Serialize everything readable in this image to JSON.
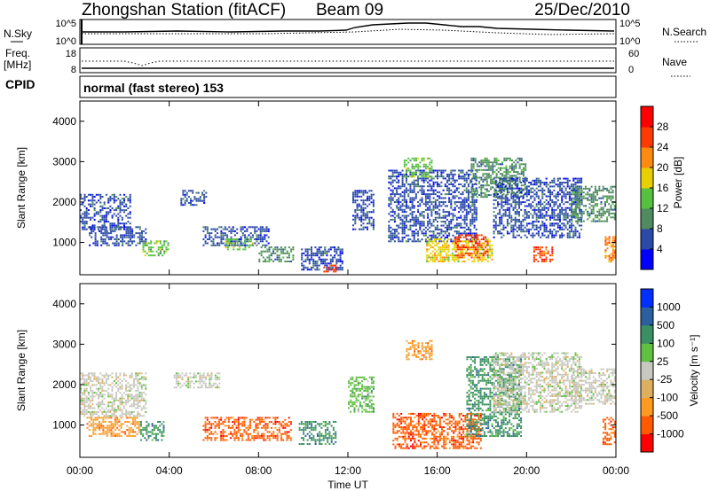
{
  "header": {
    "station": "Zhongshan Station (fitACF)",
    "beam": "Beam 09",
    "date": "25/Dec/2010"
  },
  "top_panels": {
    "nsky_label": "N.Sky",
    "nsky_top_tick": "10^5",
    "nsky_bottom_tick": "10^0",
    "nsearch_label": "N.Search",
    "nsearch_top_tick": "10^5",
    "nsearch_bottom_tick": "10^0",
    "freq_label_line1": "Freq.",
    "freq_label_line2": "[MHz]",
    "freq_top_tick": "18",
    "freq_bottom_tick": "8",
    "nave_label": "Nave",
    "nave_top_tick": "60",
    "nave_bottom_tick": "0",
    "cpid_label": "CPID",
    "mode": "normal (fast stereo) 153"
  },
  "colors": {
    "power_scale": [
      "#0000ff",
      "#2a4aa8",
      "#4f8a60",
      "#56c040",
      "#e8d000",
      "#ff8a10",
      "#ff3a00",
      "#ff0000"
    ],
    "velocity_scale": [
      "#ff0000",
      "#ff5a00",
      "#ff9a20",
      "#ddb060",
      "#c8c8c0",
      "#60c040",
      "#3a9060",
      "#2a60a0",
      "#0030ff"
    ]
  },
  "chart_data": [
    {
      "type": "heatmap",
      "name": "power_panel",
      "ylabel": "Slant Range [km]",
      "ylim": [
        200,
        4500
      ],
      "y_ticks": [
        "4000",
        "3000",
        "2000",
        "1000"
      ],
      "y_tick_values": [
        4000,
        3000,
        2000,
        1000
      ],
      "x_ticks": [
        "00:00",
        "04:00",
        "08:00",
        "12:00",
        "16:00",
        "20:00",
        "00:00"
      ],
      "x_tick_hours": [
        0,
        4,
        8,
        12,
        16,
        20,
        24
      ],
      "colorbar_label": "Power [dB]",
      "colorbar_ticks": [
        "28",
        "24",
        "20",
        "16",
        "12",
        "8",
        "4"
      ],
      "colorbar_values": [
        28,
        24,
        20,
        16,
        12,
        8,
        4
      ],
      "colorbar_range": [
        0,
        32
      ],
      "patches": [
        {
          "t0": 0.0,
          "t1": 2.3,
          "r0": 1300,
          "r1": 2200,
          "level": 1
        },
        {
          "t0": 0.4,
          "t1": 3.0,
          "r0": 900,
          "r1": 1400,
          "level": 1
        },
        {
          "t0": 2.8,
          "t1": 4.0,
          "r0": 650,
          "r1": 1050,
          "level": 3
        },
        {
          "t0": 4.5,
          "t1": 5.7,
          "r0": 1900,
          "r1": 2300,
          "level": 1
        },
        {
          "t0": 5.5,
          "t1": 8.5,
          "r0": 900,
          "r1": 1400,
          "level": 1
        },
        {
          "t0": 6.5,
          "t1": 7.8,
          "r0": 800,
          "r1": 1100,
          "level": 3
        },
        {
          "t0": 8.0,
          "t1": 9.6,
          "r0": 500,
          "r1": 900,
          "level": 2
        },
        {
          "t0": 9.9,
          "t1": 11.8,
          "r0": 300,
          "r1": 900,
          "level": 1
        },
        {
          "t0": 10.9,
          "t1": 11.5,
          "r0": 250,
          "r1": 450,
          "level": 6
        },
        {
          "t0": 12.2,
          "t1": 13.2,
          "r0": 1300,
          "r1": 2300,
          "level": 1
        },
        {
          "t0": 13.8,
          "t1": 17.8,
          "r0": 1000,
          "r1": 2800,
          "level": 1
        },
        {
          "t0": 14.5,
          "t1": 15.8,
          "r0": 2600,
          "r1": 3100,
          "level": 3
        },
        {
          "t0": 15.5,
          "t1": 18.5,
          "r0": 500,
          "r1": 1100,
          "level": 4
        },
        {
          "t0": 16.8,
          "t1": 18.3,
          "r0": 600,
          "r1": 1200,
          "level": 6
        },
        {
          "t0": 17.5,
          "t1": 20.0,
          "r0": 2100,
          "r1": 3100,
          "level": 2
        },
        {
          "t0": 18.5,
          "t1": 22.5,
          "r0": 1100,
          "r1": 2600,
          "level": 1
        },
        {
          "t0": 20.3,
          "t1": 21.2,
          "r0": 500,
          "r1": 900,
          "level": 6
        },
        {
          "t0": 22.0,
          "t1": 24.0,
          "r0": 1500,
          "r1": 2400,
          "level": 2
        },
        {
          "t0": 23.5,
          "t1": 24.0,
          "r0": 500,
          "r1": 1200,
          "level": 5
        }
      ]
    },
    {
      "type": "heatmap",
      "name": "velocity_panel",
      "ylabel": "Slant Range [km]",
      "xlabel": "Time UT",
      "ylim": [
        200,
        4500
      ],
      "y_ticks": [
        "4000",
        "3000",
        "2000",
        "1000"
      ],
      "y_tick_values": [
        4000,
        3000,
        2000,
        1000
      ],
      "x_ticks": [
        "00:00",
        "04:00",
        "08:00",
        "12:00",
        "16:00",
        "20:00",
        "00:00"
      ],
      "x_tick_hours": [
        0,
        4,
        8,
        12,
        16,
        20,
        24
      ],
      "colorbar_label": "Velocity [m s⁻¹]",
      "colorbar_ticks": [
        "1000",
        "500",
        "100",
        "25",
        "-25",
        "-100",
        "-500",
        "-1000"
      ],
      "patches": [
        {
          "t0": 0.0,
          "t1": 3.0,
          "r0": 1200,
          "r1": 2300,
          "level": 4
        },
        {
          "t0": 0.3,
          "t1": 2.7,
          "r0": 700,
          "r1": 1200,
          "level": 2
        },
        {
          "t0": 2.7,
          "t1": 3.8,
          "r0": 600,
          "r1": 1100,
          "level": 6
        },
        {
          "t0": 4.2,
          "t1": 6.3,
          "r0": 1900,
          "r1": 2300,
          "level": 4
        },
        {
          "t0": 5.5,
          "t1": 9.5,
          "r0": 600,
          "r1": 1200,
          "level": 1
        },
        {
          "t0": 9.8,
          "t1": 11.5,
          "r0": 500,
          "r1": 1100,
          "level": 6
        },
        {
          "t0": 12.0,
          "t1": 13.2,
          "r0": 1300,
          "r1": 2200,
          "level": 5
        },
        {
          "t0": 14.0,
          "t1": 18.0,
          "r0": 400,
          "r1": 1300,
          "level": 1
        },
        {
          "t0": 14.6,
          "t1": 15.8,
          "r0": 2600,
          "r1": 3100,
          "level": 2
        },
        {
          "t0": 17.3,
          "t1": 19.8,
          "r0": 700,
          "r1": 2700,
          "level": 6
        },
        {
          "t0": 18.5,
          "t1": 22.5,
          "r0": 1300,
          "r1": 2800,
          "level": 4
        },
        {
          "t0": 22.0,
          "t1": 24.0,
          "r0": 1500,
          "r1": 2400,
          "level": 4
        },
        {
          "t0": 23.4,
          "t1": 24.0,
          "r0": 500,
          "r1": 1200,
          "level": 1
        }
      ]
    }
  ]
}
